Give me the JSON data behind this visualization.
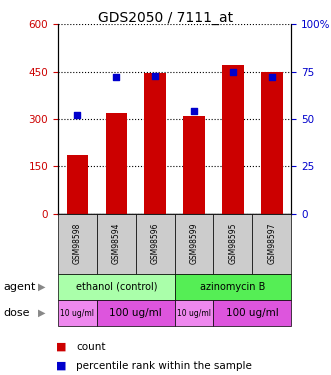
{
  "title": "GDS2050 / 7111_at",
  "samples": [
    "GSM98598",
    "GSM98594",
    "GSM98596",
    "GSM98599",
    "GSM98595",
    "GSM98597"
  ],
  "counts": [
    185,
    320,
    445,
    310,
    470,
    450
  ],
  "percentiles": [
    52,
    72,
    73,
    54,
    75,
    72
  ],
  "ylim_left": [
    0,
    600
  ],
  "ylim_right": [
    0,
    100
  ],
  "yticks_left": [
    0,
    150,
    300,
    450,
    600
  ],
  "yticks_right": [
    0,
    25,
    50,
    75,
    100
  ],
  "bar_color": "#cc0000",
  "dot_color": "#0000cc",
  "agent_groups": [
    {
      "label": "ethanol (control)",
      "start": 0,
      "end": 3,
      "color": "#aaffaa"
    },
    {
      "label": "azinomycin B",
      "start": 3,
      "end": 6,
      "color": "#55ee55"
    }
  ],
  "dose_groups": [
    {
      "label": "10 ug/ml",
      "start": 0,
      "end": 1,
      "color": "#ee88ee",
      "fontsize": 5.5
    },
    {
      "label": "100 ug/ml",
      "start": 1,
      "end": 3,
      "color": "#dd55dd",
      "fontsize": 7.5
    },
    {
      "label": "10 ug/ml",
      "start": 3,
      "end": 4,
      "color": "#ee88ee",
      "fontsize": 5.5
    },
    {
      "label": "100 ug/ml",
      "start": 4,
      "end": 6,
      "color": "#dd55dd",
      "fontsize": 7.5
    }
  ],
  "left_axis_color": "#cc0000",
  "right_axis_color": "#0000cc",
  "grid_color": "#000000",
  "sample_box_color": "#cccccc",
  "legend_count_color": "#cc0000",
  "legend_pct_color": "#0000cc"
}
